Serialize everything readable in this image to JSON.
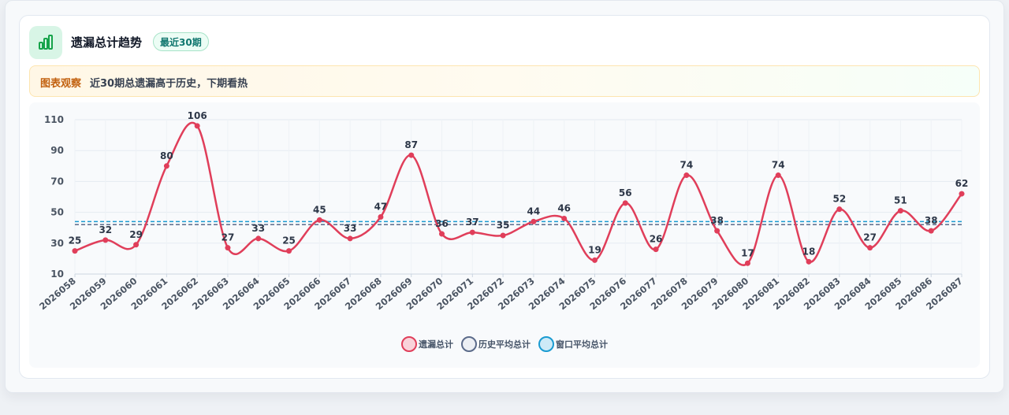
{
  "header": {
    "title": "遗漏总计趋势",
    "badge": "最近30期",
    "icon": "bar-chart-icon"
  },
  "observation": {
    "label": "图表观察",
    "text": "近30期总遗漏高于历史，下期看热"
  },
  "colors": {
    "series": "#e03e5a",
    "history_avg": "#5b6b8a",
    "window_avg": "#1a9bd1"
  },
  "chart_data": {
    "type": "line",
    "categories": [
      "2026058",
      "2026059",
      "2026060",
      "2026061",
      "2026062",
      "2026063",
      "2026064",
      "2026065",
      "2026066",
      "2026067",
      "2026068",
      "2026069",
      "2026070",
      "2026071",
      "2026072",
      "2026073",
      "2026074",
      "2026075",
      "2026076",
      "2026077",
      "2026078",
      "2026079",
      "2026080",
      "2026081",
      "2026082",
      "2026083",
      "2026084",
      "2026085",
      "2026086",
      "2026087"
    ],
    "series": [
      {
        "name": "遗漏总计",
        "values": [
          25,
          32,
          29,
          80,
          106,
          27,
          33,
          25,
          45,
          33,
          47,
          87,
          36,
          37,
          35,
          44,
          46,
          19,
          56,
          26,
          74,
          38,
          17,
          74,
          18,
          52,
          27,
          51,
          38,
          62
        ]
      }
    ],
    "reference_lines": [
      {
        "name": "历史平均总计",
        "value": 42
      },
      {
        "name": "窗口平均总计",
        "value": 44
      }
    ],
    "yticks": [
      10,
      30,
      50,
      70,
      90,
      110
    ],
    "ylim": [
      10,
      110
    ],
    "grid": true,
    "legend_position": "bottom"
  }
}
